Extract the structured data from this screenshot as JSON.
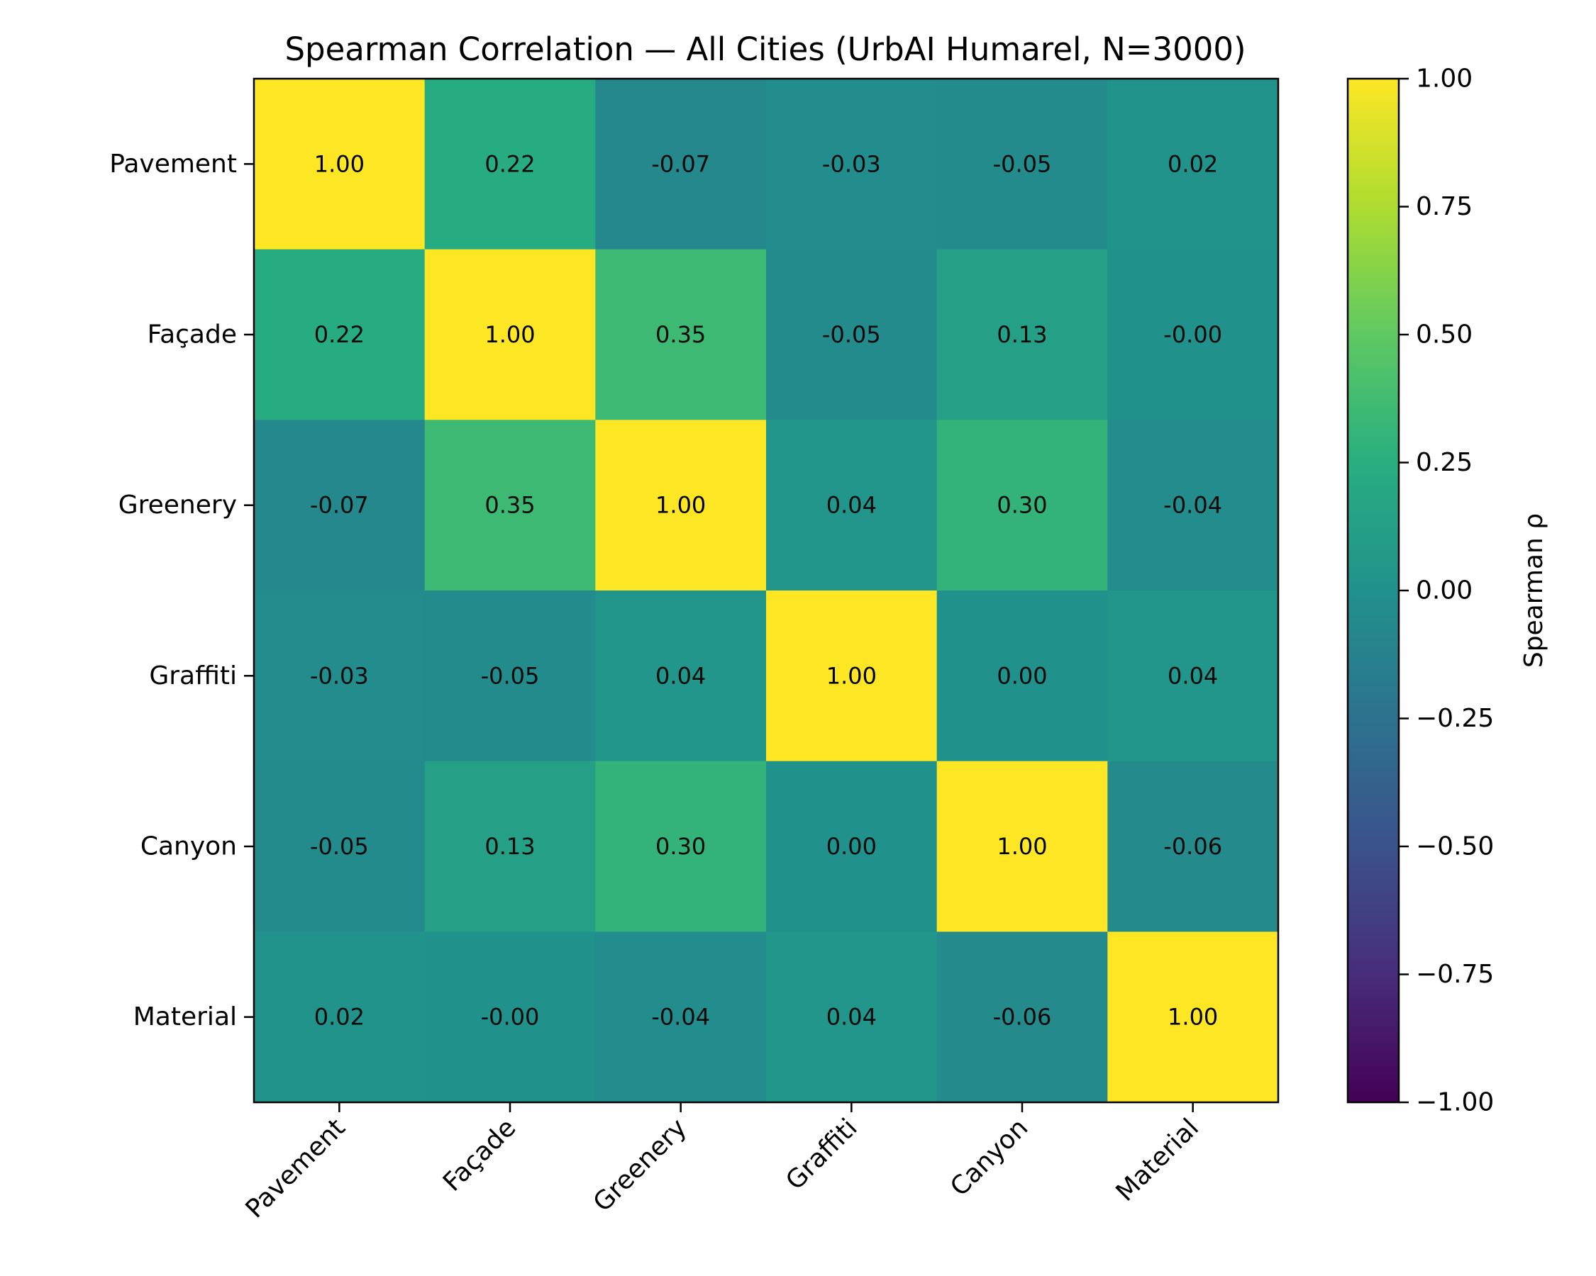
{
  "chart_data": {
    "type": "heatmap",
    "title": "Spearman Correlation — All Cities (UrbAI Humarel, N=3000)",
    "x_categories": [
      "Pavement",
      "Façade",
      "Greenery",
      "Graffiti",
      "Canyon",
      "Material"
    ],
    "y_categories": [
      "Pavement",
      "Façade",
      "Greenery",
      "Graffiti",
      "Canyon",
      "Material"
    ],
    "values": [
      [
        1.0,
        0.22,
        -0.07,
        -0.03,
        -0.05,
        0.02
      ],
      [
        0.22,
        1.0,
        0.35,
        -0.05,
        0.13,
        -0.0
      ],
      [
        -0.07,
        0.35,
        1.0,
        0.04,
        0.3,
        -0.04
      ],
      [
        -0.03,
        -0.05,
        0.04,
        1.0,
        0.0,
        0.04
      ],
      [
        -0.05,
        0.13,
        0.3,
        0.0,
        1.0,
        -0.06
      ],
      [
        0.02,
        -0.0,
        -0.04,
        0.04,
        -0.06,
        1.0
      ]
    ],
    "cell_labels": [
      [
        "1.00",
        "0.22",
        "-0.07",
        "-0.03",
        "-0.05",
        "0.02"
      ],
      [
        "0.22",
        "1.00",
        "0.35",
        "-0.05",
        "0.13",
        "-0.00"
      ],
      [
        "-0.07",
        "0.35",
        "1.00",
        "0.04",
        "0.30",
        "-0.04"
      ],
      [
        "-0.03",
        "-0.05",
        "0.04",
        "1.00",
        "0.00",
        "0.04"
      ],
      [
        "-0.05",
        "0.13",
        "0.30",
        "0.00",
        "1.00",
        "-0.06"
      ],
      [
        "0.02",
        "-0.00",
        "-0.04",
        "0.04",
        "-0.06",
        "1.00"
      ]
    ],
    "colormap": "viridis",
    "vmin": -1.0,
    "vmax": 1.0,
    "colorbar": {
      "label": "Spearman ρ",
      "ticks": [
        1.0,
        0.75,
        0.5,
        0.25,
        0.0,
        -0.25,
        -0.5,
        -0.75,
        -1.0
      ],
      "tick_labels": [
        "1.00",
        "0.75",
        "0.50",
        "0.25",
        "0.00",
        "−0.25",
        "−0.50",
        "−0.75",
        "−1.00"
      ]
    }
  }
}
